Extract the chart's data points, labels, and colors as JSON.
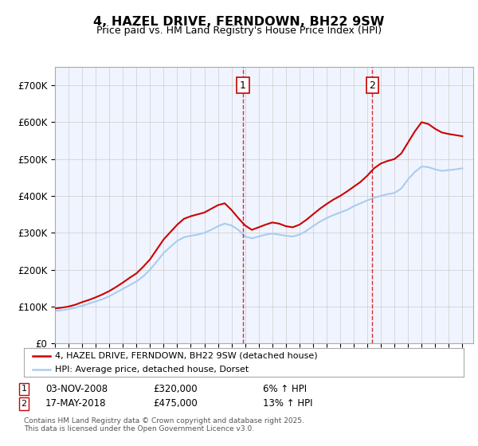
{
  "title": "4, HAZEL DRIVE, FERNDOWN, BH22 9SW",
  "subtitle": "Price paid vs. HM Land Registry's House Price Index (HPI)",
  "ylabel_ticks": [
    "£0",
    "£100K",
    "£200K",
    "£300K",
    "£400K",
    "£500K",
    "£600K",
    "£700K"
  ],
  "ylim": [
    0,
    750000
  ],
  "xlim_start": 1995.0,
  "xlim_end": 2025.5,
  "background_color": "#ffffff",
  "plot_background": "#f0f4ff",
  "grid_color": "#cccccc",
  "red_line_color": "#cc0000",
  "blue_line_color": "#aaccee",
  "sale1_x": 2008.84,
  "sale1_y": 320000,
  "sale2_x": 2018.37,
  "sale2_y": 475000,
  "legend_label1": "4, HAZEL DRIVE, FERNDOWN, BH22 9SW (detached house)",
  "legend_label2": "HPI: Average price, detached house, Dorset",
  "annotation1_label": "1",
  "annotation1_date": "03-NOV-2008",
  "annotation1_price": "£320,000",
  "annotation1_hpi": "6% ↑ HPI",
  "annotation2_label": "2",
  "annotation2_date": "17-MAY-2018",
  "annotation2_price": "£475,000",
  "annotation2_hpi": "13% ↑ HPI",
  "footer": "Contains HM Land Registry data © Crown copyright and database right 2025.\nThis data is licensed under the Open Government Licence v3.0."
}
